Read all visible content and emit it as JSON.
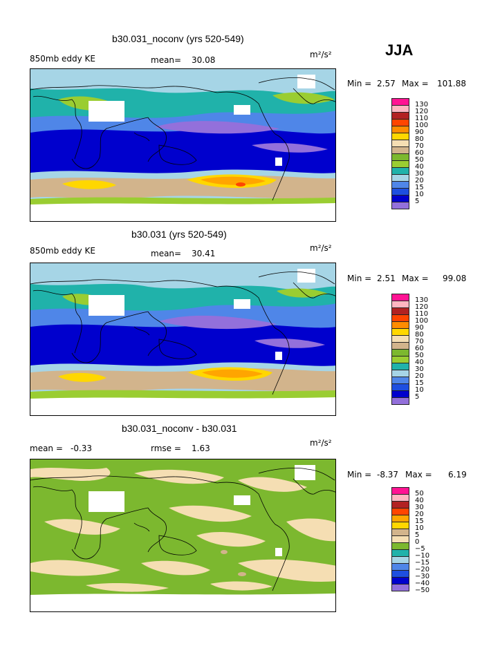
{
  "season": "JJA",
  "colors": {
    "abs": [
      "#9370db",
      "#0000cd",
      "#1e4fe0",
      "#4f86e8",
      "#a6d5e6",
      "#20b2aa",
      "#9acd32",
      "#7cb82f",
      "#d2b48c",
      "#f5deb3",
      "#ffd700",
      "#ff8c00",
      "#ff4500",
      "#b22222",
      "#ffb6c1",
      "#ff1493"
    ],
    "diff": [
      "#9370db",
      "#0000cd",
      "#1e4fe0",
      "#4f86e8",
      "#a6d5e6",
      "#20b2aa",
      "#7cb82f",
      "#f5deb3",
      "#d2b48c",
      "#ffd700",
      "#ffa500",
      "#ff4500",
      "#b22222",
      "#ffb6c1",
      "#ff1493"
    ]
  },
  "panels": [
    {
      "title": "b30.031_noconv (yrs 520-549)",
      "left_label": "850mb eddy KE",
      "mean_label": "mean=",
      "mean_value": "30.08",
      "units": "m²/s²",
      "min_label": "Min =",
      "min_value": "2.57",
      "max_label": "Max =",
      "max_value": "101.88",
      "levels": [
        "5",
        "10",
        "15",
        "20",
        "30",
        "40",
        "50",
        "60",
        "70",
        "80",
        "90",
        "100",
        "110",
        "120",
        "130"
      ]
    },
    {
      "title": "b30.031 (yrs 520-549)",
      "left_label": "850mb eddy KE",
      "mean_label": "mean=",
      "mean_value": "30.41",
      "units": "m²/s²",
      "min_label": "Min =",
      "min_value": "2.51",
      "max_label": "Max =",
      "max_value": "99.08",
      "levels": [
        "5",
        "10",
        "15",
        "20",
        "30",
        "40",
        "50",
        "60",
        "70",
        "80",
        "90",
        "100",
        "110",
        "120",
        "130"
      ]
    },
    {
      "title": "b30.031_noconv - b30.031",
      "left_label": "mean =",
      "mean_value": "-0.33",
      "rmse_label": "rmse =",
      "rmse_value": "1.63",
      "units": "m²/s²",
      "min_label": "Min =",
      "min_value": "-8.37",
      "max_label": "Max =",
      "max_value": "6.19",
      "levels": [
        "−50",
        "−40",
        "−30",
        "−20",
        "−15",
        "−10",
        "−5",
        "0",
        "5",
        "10",
        "15",
        "20",
        "30",
        "40",
        "50"
      ]
    }
  ]
}
